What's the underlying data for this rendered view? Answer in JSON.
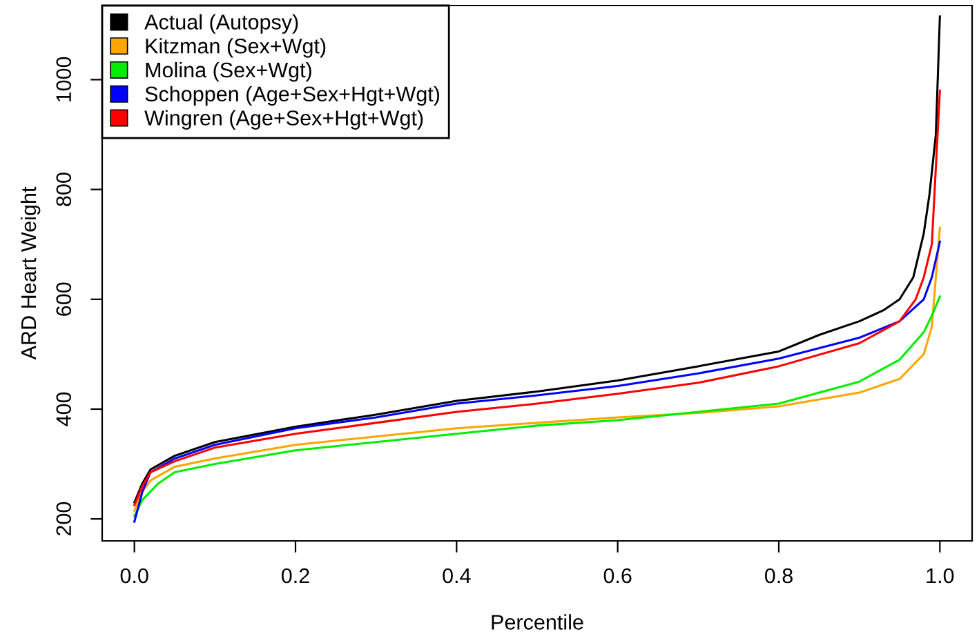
{
  "chart_data": {
    "type": "line",
    "xlabel": "Percentile",
    "ylabel": "ARD Heart Weight",
    "xlim": [
      -0.04,
      1.04
    ],
    "ylim": [
      160,
      1135
    ],
    "xticks": [
      {
        "value": 0,
        "label": "0.0"
      },
      0.2,
      0.4,
      0.6,
      0.8,
      {
        "value": 1,
        "label": "1.0"
      }
    ],
    "yticks": [
      200,
      400,
      600,
      800,
      1000
    ],
    "grid": false,
    "legend": "top left",
    "marker": "none",
    "line_style": "solid",
    "series": [
      {
        "name": "Actual (Autopsy)",
        "color": "#000000",
        "x": [
          0,
          0.01,
          0.02,
          0.05,
          0.1,
          0.2,
          0.3,
          0.4,
          0.5,
          0.6,
          0.7,
          0.8,
          0.85,
          0.9,
          0.93,
          0.95,
          0.967,
          0.98,
          0.987,
          0.995,
          1.0
        ],
        "values": [
          230,
          265,
          290,
          315,
          340,
          368,
          390,
          415,
          432,
          452,
          478,
          505,
          535,
          560,
          580,
          600,
          640,
          720,
          790,
          900,
          1115
        ]
      },
      {
        "name": "Kitzman (Sex+Wgt)",
        "color": "#ffa500",
        "x": [
          0,
          0.01,
          0.02,
          0.05,
          0.1,
          0.2,
          0.3,
          0.4,
          0.5,
          0.6,
          0.7,
          0.8,
          0.9,
          0.95,
          0.98,
          0.99,
          1.0
        ],
        "values": [
          215,
          250,
          270,
          295,
          310,
          335,
          350,
          365,
          375,
          385,
          393,
          405,
          430,
          455,
          500,
          550,
          730
        ]
      },
      {
        "name": "Molina (Sex+Wgt)",
        "color": "#00ee00",
        "x": [
          0,
          0.01,
          0.03,
          0.05,
          0.1,
          0.2,
          0.3,
          0.4,
          0.5,
          0.6,
          0.7,
          0.8,
          0.9,
          0.95,
          0.98,
          0.99,
          1.0
        ],
        "values": [
          205,
          235,
          265,
          285,
          300,
          325,
          340,
          355,
          370,
          380,
          395,
          410,
          450,
          490,
          540,
          570,
          605
        ]
      },
      {
        "name": "Schoppen (Age+Sex+Hgt+Wgt)",
        "color": "#0000ff",
        "x": [
          0,
          0.01,
          0.02,
          0.05,
          0.1,
          0.2,
          0.3,
          0.4,
          0.5,
          0.6,
          0.7,
          0.8,
          0.9,
          0.95,
          0.98,
          0.99,
          1.0
        ],
        "values": [
          195,
          250,
          285,
          310,
          335,
          365,
          385,
          410,
          425,
          442,
          465,
          492,
          530,
          560,
          600,
          640,
          705
        ]
      },
      {
        "name": "Wingren (Age+Sex+Hgt+Wgt)",
        "color": "#ff0000",
        "x": [
          0,
          0.01,
          0.02,
          0.05,
          0.1,
          0.2,
          0.3,
          0.4,
          0.5,
          0.6,
          0.7,
          0.8,
          0.9,
          0.95,
          0.97,
          0.98,
          0.99,
          1.0
        ],
        "values": [
          225,
          260,
          285,
          305,
          330,
          355,
          375,
          395,
          410,
          428,
          448,
          478,
          520,
          560,
          600,
          640,
          700,
          980
        ]
      }
    ]
  }
}
